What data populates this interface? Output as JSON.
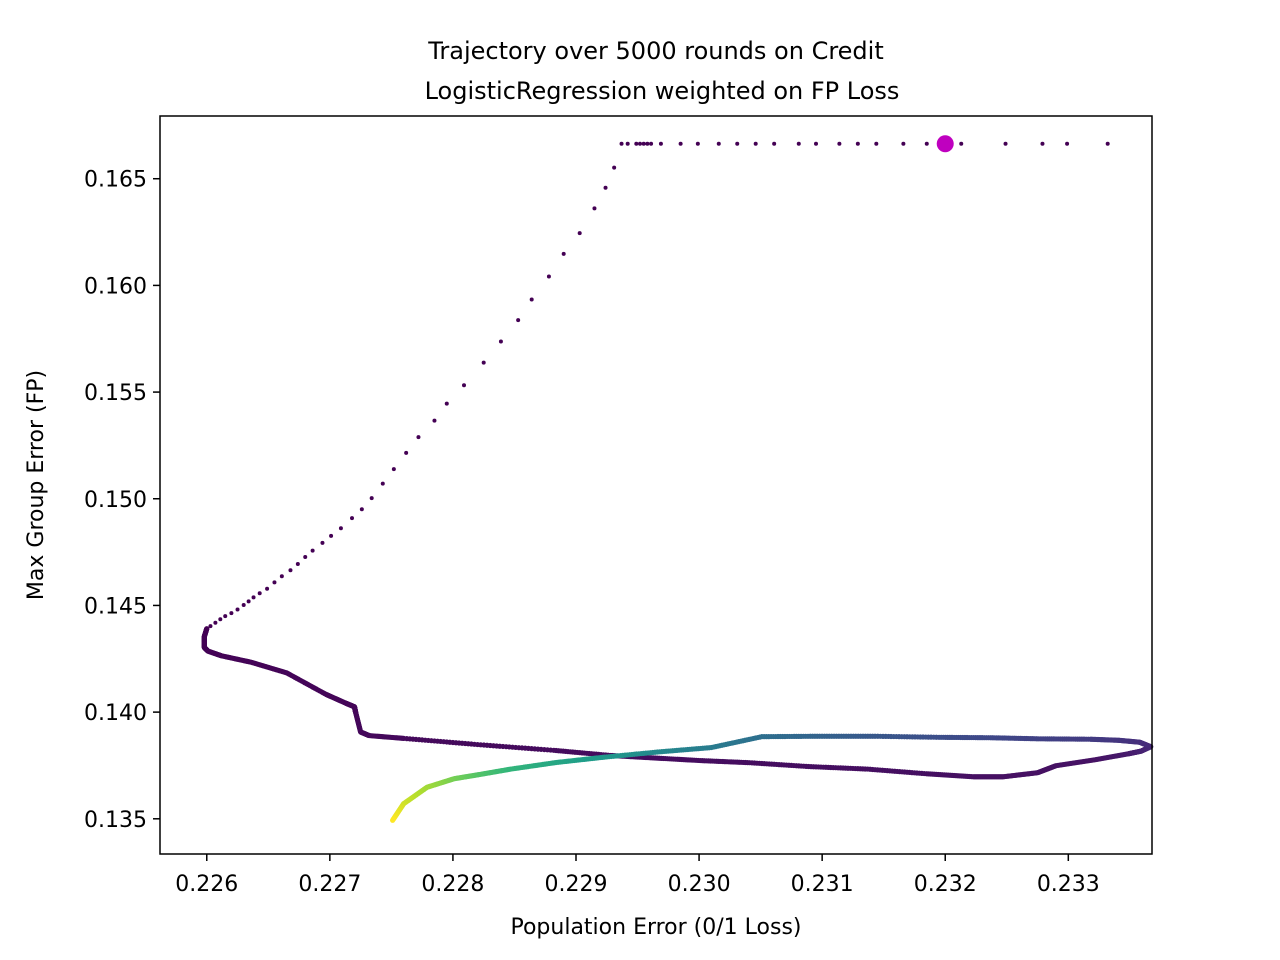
{
  "chart_data": {
    "type": "scatter",
    "title": "Trajectory over 5000 rounds on Credit",
    "subtitle": "LogisticRegression weighted on FP Loss",
    "xlabel": "Population Error (0/1 Loss)",
    "ylabel": "Max Group Error (FP)",
    "xlim": [
      0.22562,
      0.23368
    ],
    "ylim": [
      0.13335,
      0.16794
    ],
    "xticks": [
      0.226,
      0.227,
      0.228,
      0.229,
      0.23,
      0.231,
      0.232,
      0.233
    ],
    "xtick_labels": [
      "0.226",
      "0.227",
      "0.228",
      "0.229",
      "0.230",
      "0.231",
      "0.232",
      "0.233"
    ],
    "yticks": [
      0.135,
      0.14,
      0.145,
      0.15,
      0.155,
      0.16,
      0.165
    ],
    "ytick_labels": [
      "0.135",
      "0.140",
      "0.145",
      "0.150",
      "0.155",
      "0.160",
      "0.165"
    ],
    "grid": false,
    "legend": "none",
    "colormap": "viridis",
    "start_point": {
      "x": 0.232,
      "y": 0.16664,
      "color": "#bf00bf"
    },
    "sparse_points": [
      [
        0.23332,
        0.16664
      ],
      [
        0.23299,
        0.16664
      ],
      [
        0.23279,
        0.16664
      ],
      [
        0.23249,
        0.16664
      ],
      [
        0.23213,
        0.16664
      ],
      [
        0.23185,
        0.16664
      ],
      [
        0.23166,
        0.16664
      ],
      [
        0.23144,
        0.16664
      ],
      [
        0.23129,
        0.16664
      ],
      [
        0.23114,
        0.16664
      ],
      [
        0.23095,
        0.16664
      ],
      [
        0.23081,
        0.16664
      ],
      [
        0.23061,
        0.16664
      ],
      [
        0.23046,
        0.16664
      ],
      [
        0.23031,
        0.16664
      ],
      [
        0.23016,
        0.16664
      ],
      [
        0.22999,
        0.16664
      ],
      [
        0.22985,
        0.16664
      ],
      [
        0.22969,
        0.16664
      ],
      [
        0.22961,
        0.16664
      ],
      [
        0.22958,
        0.16664
      ],
      [
        0.22955,
        0.16664
      ],
      [
        0.22952,
        0.16664
      ],
      [
        0.22949,
        0.16664
      ],
      [
        0.22942,
        0.16664
      ],
      [
        0.22937,
        0.16664
      ],
      [
        0.22931,
        0.16552
      ],
      [
        0.22924,
        0.16458
      ],
      [
        0.22915,
        0.16361
      ],
      [
        0.22903,
        0.16245
      ],
      [
        0.2289,
        0.16148
      ],
      [
        0.22878,
        0.16042
      ],
      [
        0.22864,
        0.15934
      ],
      [
        0.22853,
        0.15837
      ],
      [
        0.22839,
        0.15737
      ],
      [
        0.22825,
        0.15638
      ],
      [
        0.22809,
        0.15532
      ],
      [
        0.22795,
        0.15446
      ],
      [
        0.22785,
        0.15366
      ],
      [
        0.22772,
        0.15289
      ],
      [
        0.22762,
        0.15215
      ],
      [
        0.22752,
        0.15139
      ],
      [
        0.22743,
        0.15071
      ],
      [
        0.22734,
        0.15003
      ],
      [
        0.22726,
        0.14951
      ],
      [
        0.22718,
        0.14909
      ],
      [
        0.22709,
        0.14862
      ],
      [
        0.22701,
        0.14826
      ],
      [
        0.22694,
        0.14793
      ],
      [
        0.22686,
        0.14757
      ],
      [
        0.2268,
        0.14727
      ],
      [
        0.22674,
        0.14694
      ],
      [
        0.22668,
        0.14665
      ],
      [
        0.22661,
        0.14637
      ],
      [
        0.22655,
        0.14608
      ],
      [
        0.22649,
        0.14578
      ],
      [
        0.22643,
        0.14557
      ],
      [
        0.22638,
        0.14538
      ],
      [
        0.22634,
        0.14519
      ],
      [
        0.2263,
        0.14502
      ],
      [
        0.22625,
        0.14481
      ],
      [
        0.2262,
        0.14464
      ],
      [
        0.22615,
        0.1445
      ],
      [
        0.22611,
        0.14435
      ],
      [
        0.22607,
        0.14419
      ],
      [
        0.22603,
        0.14403
      ],
      [
        0.226,
        0.14391
      ]
    ],
    "path_points": [
      [
        0.226,
        0.14391
      ],
      [
        0.22598,
        0.14354
      ],
      [
        0.22598,
        0.14303
      ],
      [
        0.22601,
        0.14286
      ],
      [
        0.22612,
        0.14264
      ],
      [
        0.22636,
        0.14234
      ],
      [
        0.22665,
        0.14184
      ],
      [
        0.22697,
        0.14083
      ],
      [
        0.22713,
        0.14042
      ],
      [
        0.2272,
        0.14025
      ],
      [
        0.22721,
        0.13998
      ],
      [
        0.22725,
        0.13907
      ],
      [
        0.22732,
        0.1389
      ],
      [
        0.2276,
        0.13877
      ],
      [
        0.2282,
        0.13848
      ],
      [
        0.22882,
        0.13821
      ],
      [
        0.22928,
        0.13797
      ],
      [
        0.22961,
        0.13786
      ],
      [
        0.23001,
        0.13773
      ],
      [
        0.23041,
        0.13763
      ],
      [
        0.23089,
        0.13745
      ],
      [
        0.23137,
        0.13733
      ],
      [
        0.23185,
        0.13711
      ],
      [
        0.23223,
        0.13697
      ],
      [
        0.23247,
        0.13697
      ],
      [
        0.23275,
        0.13716
      ],
      [
        0.2329,
        0.13749
      ],
      [
        0.23322,
        0.13777
      ],
      [
        0.23349,
        0.13805
      ],
      [
        0.23359,
        0.13817
      ],
      [
        0.23367,
        0.13838
      ],
      [
        0.23358,
        0.13859
      ],
      [
        0.23341,
        0.13868
      ],
      [
        0.23318,
        0.13873
      ],
      [
        0.23276,
        0.13875
      ],
      [
        0.23237,
        0.1388
      ],
      [
        0.23195,
        0.13882
      ],
      [
        0.23143,
        0.13887
      ],
      [
        0.23096,
        0.13887
      ],
      [
        0.23051,
        0.13885
      ],
      [
        0.2301,
        0.13834
      ],
      [
        0.22968,
        0.13814
      ],
      [
        0.22923,
        0.13789
      ],
      [
        0.22884,
        0.13764
      ],
      [
        0.22847,
        0.13733
      ],
      [
        0.22822,
        0.13708
      ],
      [
        0.22801,
        0.13688
      ],
      [
        0.22779,
        0.13648
      ],
      [
        0.2276,
        0.13571
      ],
      [
        0.22751,
        0.13493
      ]
    ]
  }
}
